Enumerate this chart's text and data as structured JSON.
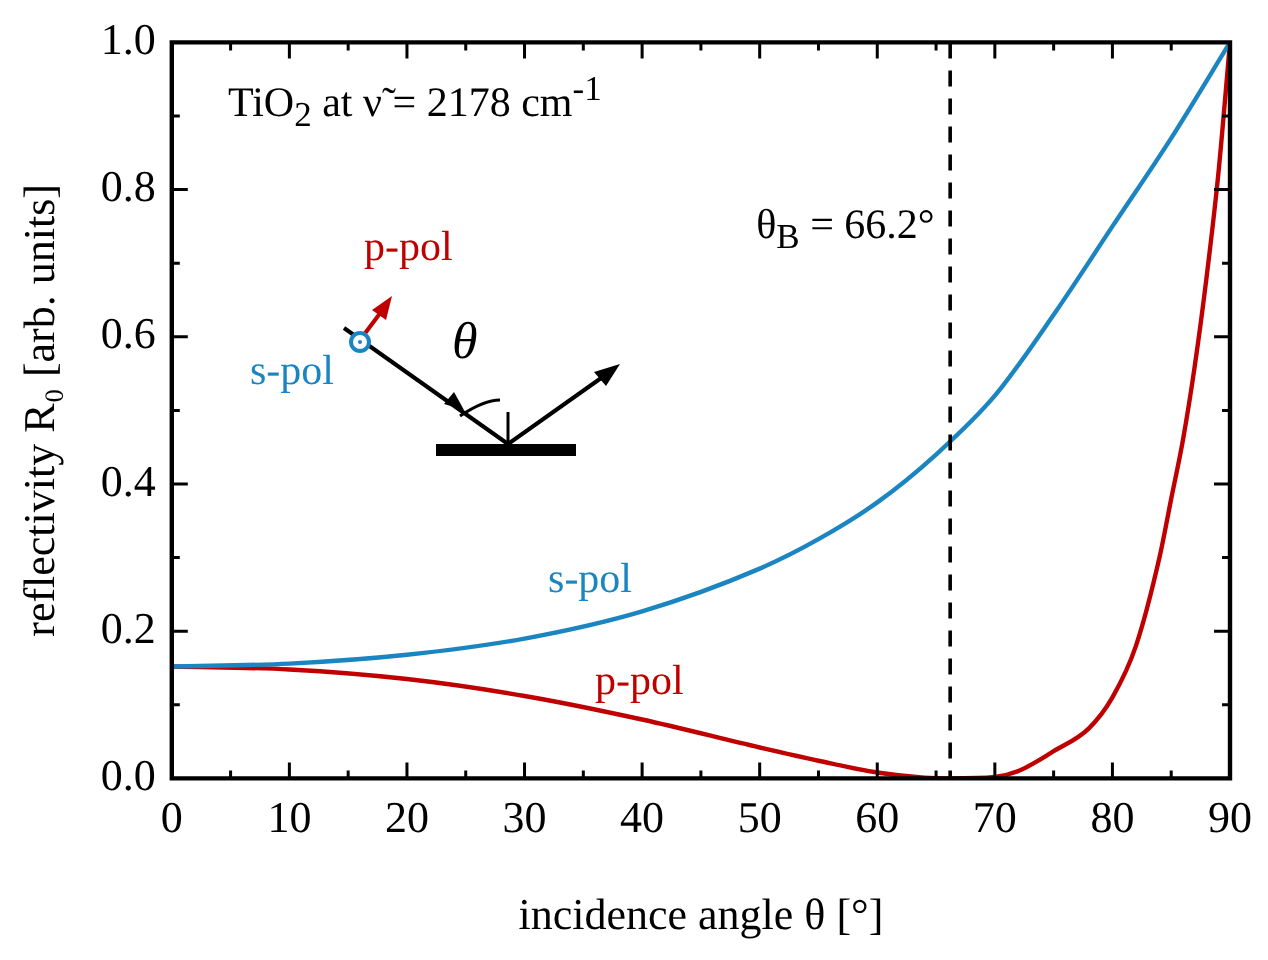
{
  "chart_data": {
    "type": "line",
    "xlabel": "incidence angle θ [°]",
    "ylabel": "reflectivity R₀ [arb. units]",
    "xlim": [
      0,
      90
    ],
    "xticks": [
      0,
      10,
      20,
      30,
      40,
      50,
      60,
      70,
      80,
      90
    ],
    "ylim": [
      0,
      1
    ],
    "yticks": [
      {
        "value": 0,
        "label": "0.0"
      },
      {
        "value": 0.2,
        "label": "0.2"
      },
      {
        "value": 0.4,
        "label": "0.4"
      },
      {
        "value": 0.6,
        "label": "0.6"
      },
      {
        "value": 0.8,
        "label": "0.8"
      },
      {
        "value": 1,
        "label": "1.0"
      }
    ],
    "grid": false,
    "legend": false,
    "marker": "none",
    "series": [
      {
        "name": "s-pol",
        "color": "#1a85c1",
        "x": [
          0,
          10,
          20,
          30,
          40,
          50,
          55,
          60,
          65,
          70,
          75,
          80,
          85,
          90
        ],
        "values": [
          0.152,
          0.156,
          0.168,
          0.19,
          0.227,
          0.285,
          0.325,
          0.375,
          0.44,
          0.52,
          0.63,
          0.75,
          0.87,
          1.0
        ]
      },
      {
        "name": "p-pol",
        "color": "#c00000",
        "x": [
          0,
          10,
          20,
          30,
          40,
          50,
          55,
          60,
          64,
          66.2,
          70,
          72,
          75,
          78,
          80,
          82,
          84,
          85,
          86,
          87,
          88,
          89,
          90
        ],
        "values": [
          0.152,
          0.148,
          0.135,
          0.112,
          0.08,
          0.042,
          0.024,
          0.008,
          0.001,
          0,
          0.002,
          0.01,
          0.037,
          0.068,
          0.11,
          0.18,
          0.3,
          0.38,
          0.46,
          0.56,
          0.68,
          0.82,
          1.0
        ]
      }
    ],
    "ref_lines": [
      {
        "axis": "x",
        "value": 66.2,
        "label": "θ$_{B}$ = 66.2°",
        "color": "#000000",
        "line_style": "dashed"
      }
    ],
    "annotations": [
      "TiO$_{2}$ at ν̃ = 2178 cm$^{-1}$",
      "p-pol",
      "s-pol",
      "θ"
    ]
  }
}
